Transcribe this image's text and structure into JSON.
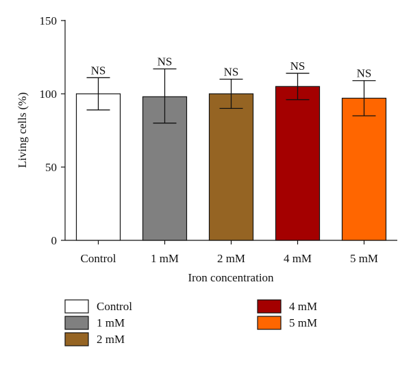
{
  "chart_data": {
    "type": "bar",
    "title": "",
    "xlabel": "Iron concentration",
    "ylabel": "Living cells (%)",
    "ylim": [
      0,
      150
    ],
    "yticks": [
      0,
      50,
      100,
      150
    ],
    "categories": [
      "Control",
      "1 mM",
      "2 mM",
      "4 mM",
      "5 mM"
    ],
    "values": [
      100,
      98,
      100,
      105,
      97
    ],
    "error_upper": [
      111,
      117,
      110,
      114,
      109
    ],
    "error_lower": [
      89,
      80,
      90,
      96,
      85
    ],
    "bar_labels": [
      "NS",
      "NS",
      "NS",
      "NS",
      "NS"
    ],
    "colors": [
      "#ffffff",
      "#808080",
      "#956423",
      "#a40000",
      "#ff6600"
    ],
    "grid": false,
    "legend": {
      "placement": "bottom",
      "entries": [
        "Control",
        "1 mM",
        "2 mM",
        "4 mM",
        "5 mM"
      ]
    }
  }
}
